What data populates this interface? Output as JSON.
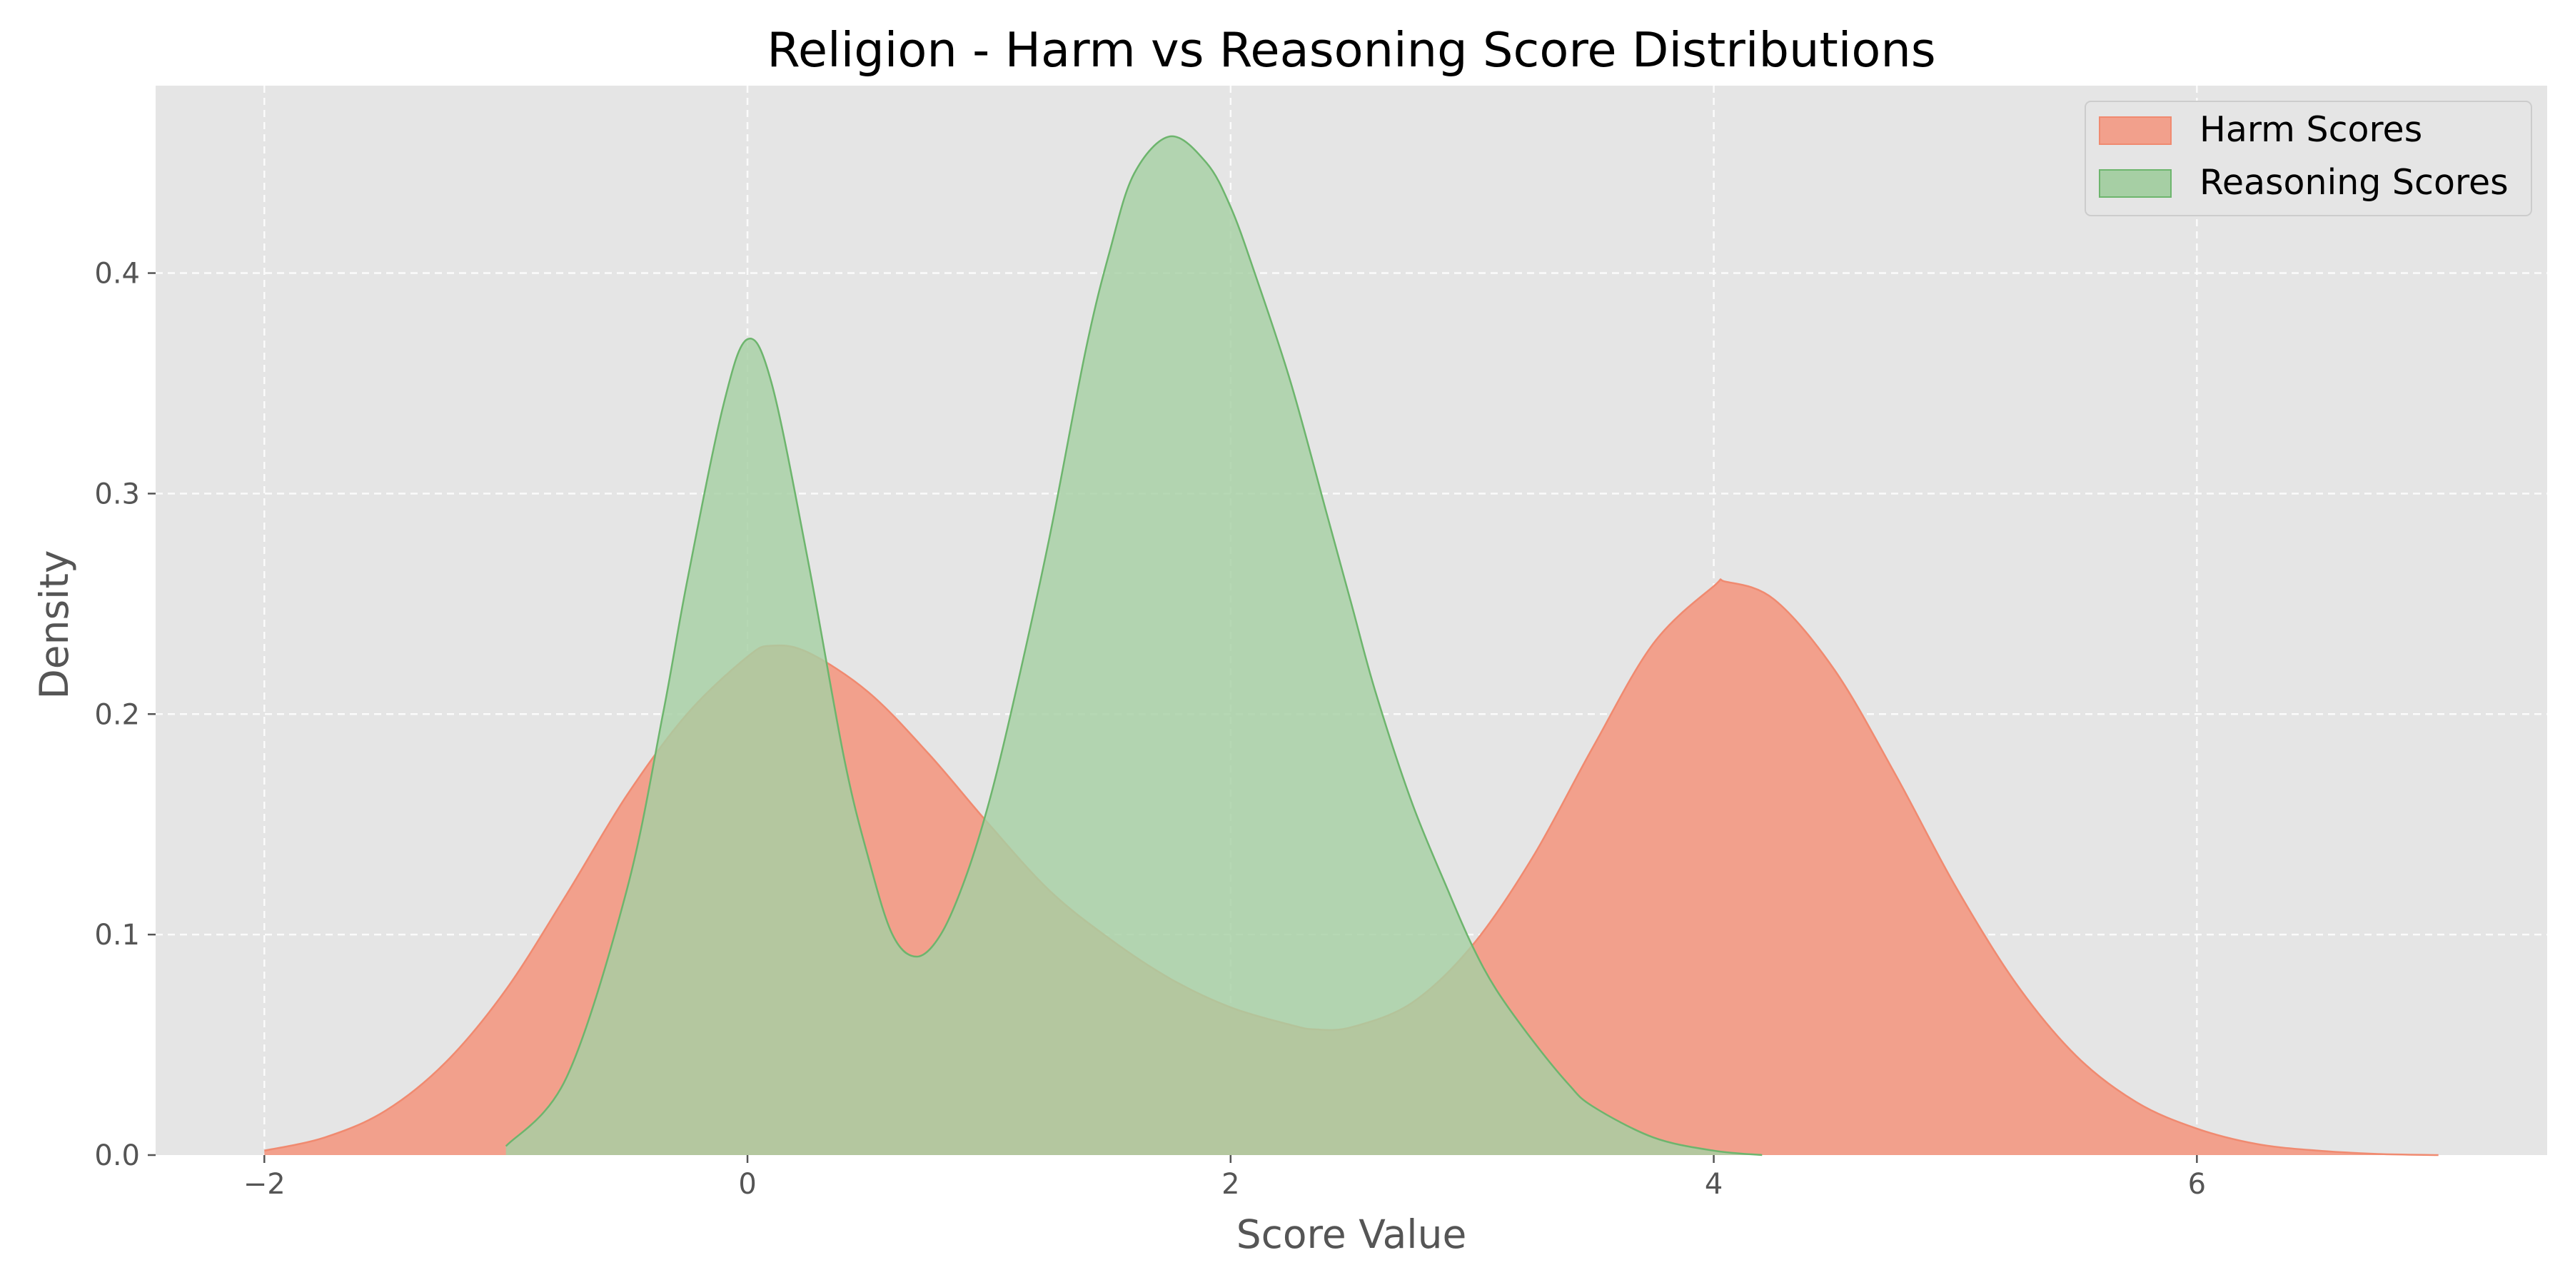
{
  "chart_data": {
    "type": "area",
    "title": "Religion - Harm vs Reasoning Score Distributions",
    "xlabel": "Score Value",
    "ylabel": "Density",
    "xlim": [
      -2.45,
      7.45
    ],
    "ylim": [
      0,
      0.485
    ],
    "xticks": [
      -2,
      0,
      2,
      4,
      6
    ],
    "xtick_labels": [
      "−2",
      "0",
      "2",
      "4",
      "6"
    ],
    "yticks": [
      0.0,
      0.1,
      0.2,
      0.3,
      0.4
    ],
    "ytick_labels": [
      "0.0",
      "0.1",
      "0.2",
      "0.3",
      "0.4"
    ],
    "grid": true,
    "legend": "top-right",
    "series": [
      {
        "name": "Harm Scores",
        "color": "#f08a70",
        "fill_color": "#f2a08c",
        "x": [
          -2.0,
          -1.75,
          -1.5,
          -1.25,
          -1.0,
          -0.75,
          -0.5,
          -0.25,
          0.0,
          0.1,
          0.25,
          0.5,
          0.75,
          1.0,
          1.25,
          1.5,
          1.75,
          2.0,
          2.25,
          2.35,
          2.5,
          2.75,
          3.0,
          3.25,
          3.5,
          3.75,
          4.0,
          4.05,
          4.25,
          4.5,
          4.75,
          5.0,
          5.25,
          5.5,
          5.75,
          6.0,
          6.25,
          6.5,
          6.75,
          7.0
        ],
        "y": [
          0.002,
          0.008,
          0.02,
          0.042,
          0.075,
          0.118,
          0.163,
          0.2,
          0.226,
          0.231,
          0.228,
          0.21,
          0.182,
          0.15,
          0.12,
          0.098,
          0.08,
          0.067,
          0.059,
          0.057,
          0.058,
          0.069,
          0.095,
          0.135,
          0.185,
          0.232,
          0.258,
          0.26,
          0.252,
          0.22,
          0.173,
          0.122,
          0.078,
          0.045,
          0.024,
          0.012,
          0.005,
          0.002,
          0.0005,
          0.0
        ]
      },
      {
        "name": "Reasoning Scores",
        "color": "#6db56d",
        "fill_color": "#a6cfa4",
        "x": [
          -1.0,
          -0.75,
          -0.5,
          -0.35,
          -0.25,
          -0.1,
          0.0,
          0.1,
          0.25,
          0.4,
          0.5,
          0.6,
          0.7,
          0.8,
          0.9,
          1.0,
          1.1,
          1.25,
          1.4,
          1.5,
          1.6,
          1.75,
          1.9,
          2.0,
          2.1,
          2.25,
          2.4,
          2.5,
          2.6,
          2.75,
          2.9,
          3.0,
          3.1,
          3.25,
          3.4,
          3.5,
          3.75,
          4.0,
          4.2
        ],
        "y": [
          0.004,
          0.035,
          0.12,
          0.2,
          0.26,
          0.34,
          0.37,
          0.35,
          0.27,
          0.18,
          0.135,
          0.1,
          0.09,
          0.1,
          0.125,
          0.16,
          0.205,
          0.28,
          0.365,
          0.41,
          0.445,
          0.462,
          0.45,
          0.43,
          0.4,
          0.35,
          0.29,
          0.25,
          0.21,
          0.16,
          0.12,
          0.095,
          0.075,
          0.052,
          0.032,
          0.022,
          0.008,
          0.002,
          0.0
        ]
      }
    ]
  }
}
